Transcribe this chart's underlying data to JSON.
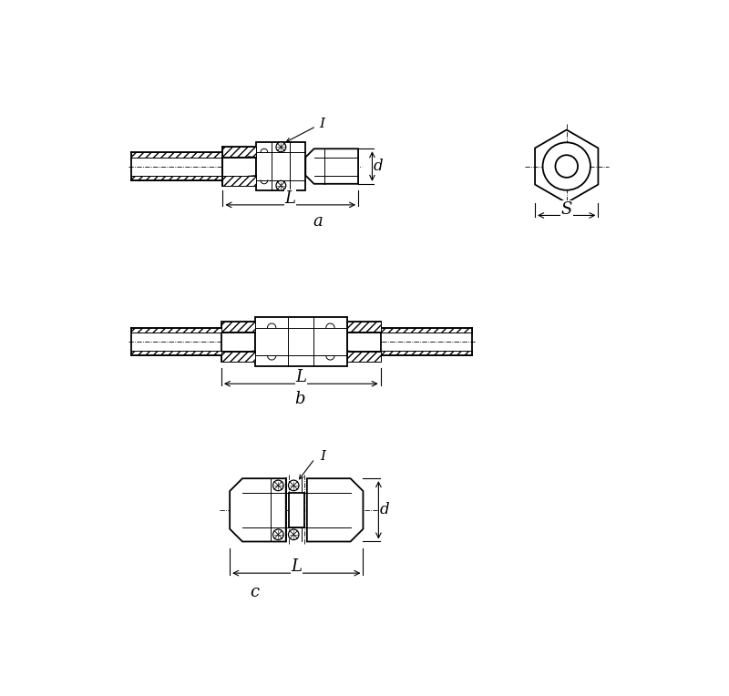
{
  "bg_color": "#ffffff",
  "line_color": "#000000",
  "fig_width": 8.0,
  "fig_height": 7.64,
  "label_a": "a",
  "label_b": "b",
  "label_c": "c",
  "label_L": "L",
  "label_d": "d",
  "label_s": "S",
  "label_I": "I"
}
